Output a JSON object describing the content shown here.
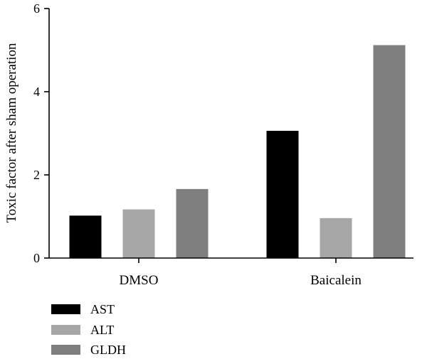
{
  "chart_data": {
    "type": "bar",
    "categories": [
      "DMSO",
      "Baicalein"
    ],
    "series": [
      {
        "name": "AST",
        "color": "#000000",
        "values": [
          1.02,
          3.06
        ]
      },
      {
        "name": "ALT",
        "color": "#a6a6a7",
        "values": [
          1.17,
          0.96
        ]
      },
      {
        "name": "GLDH",
        "color": "#7f7f7f",
        "values": [
          1.66,
          5.12
        ]
      }
    ],
    "ylabel": "Toxic factor after sham operation",
    "ylim": [
      0,
      6
    ],
    "yticks": [
      "0",
      "2",
      "4",
      "6"
    ],
    "grid": false,
    "legend": "bottom-left"
  }
}
